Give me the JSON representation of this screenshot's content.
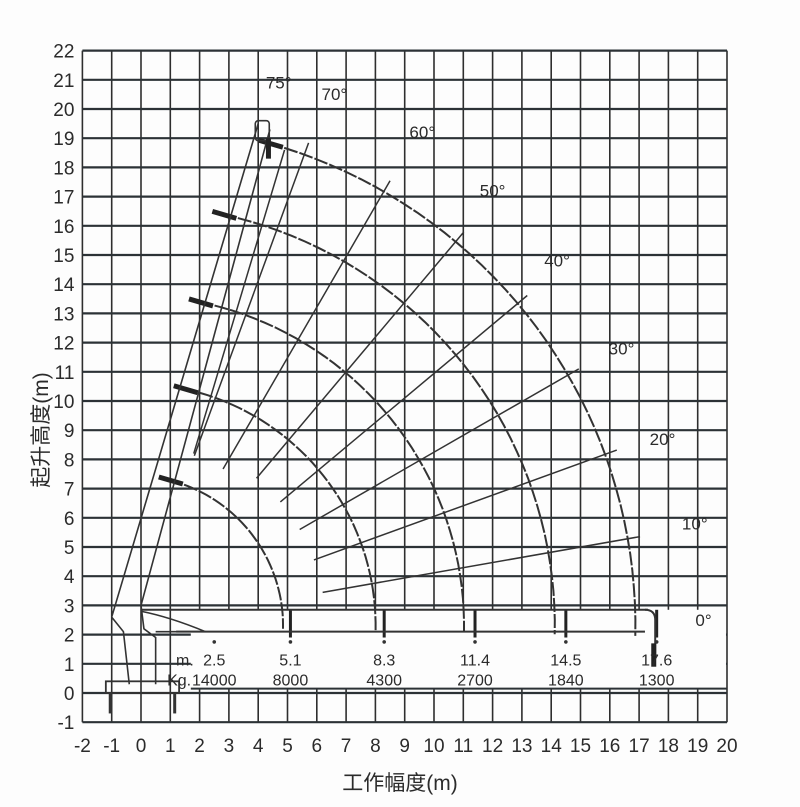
{
  "chart_data": {
    "type": "line",
    "title": "",
    "xlabel": "工作幅度(m)",
    "ylabel": "起升高度(m)",
    "xlim": [
      -2,
      20
    ],
    "ylim": [
      -1,
      22
    ],
    "grid": true,
    "x_ticks": [
      "-2",
      "-1",
      "0",
      "1",
      "2",
      "3",
      "4",
      "5",
      "6",
      "7",
      "8",
      "9",
      "10",
      "11",
      "12",
      "13",
      "14",
      "15",
      "16",
      "17",
      "18",
      "19",
      "20"
    ],
    "y_ticks": [
      "-1",
      "0",
      "1",
      "2",
      "3",
      "4",
      "5",
      "6",
      "7",
      "8",
      "9",
      "10",
      "11",
      "12",
      "13",
      "14",
      "15",
      "16",
      "17",
      "18",
      "19",
      "20",
      "21",
      "22"
    ],
    "boom_angles": [
      {
        "label": "75°",
        "angle": 75
      },
      {
        "label": "70°",
        "angle": 70
      },
      {
        "label": "60°",
        "angle": 60
      },
      {
        "label": "50°",
        "angle": 50
      },
      {
        "label": "40°",
        "angle": 40
      },
      {
        "label": "30°",
        "angle": 30
      },
      {
        "label": "20°",
        "angle": 20
      },
      {
        "label": "10°",
        "angle": 10
      },
      {
        "label": "0°",
        "angle": 0
      }
    ],
    "working_range_arcs": [
      {
        "max_height": 7.5,
        "max_radius": 5.1
      },
      {
        "max_height": 10.6,
        "max_radius": 8.3
      },
      {
        "max_height": 13.5,
        "max_radius": 11.4
      },
      {
        "max_height": 16.5,
        "max_radius": 14.5
      },
      {
        "max_height": 18.6,
        "max_radius": 17.6
      }
    ],
    "load_table": {
      "radius_label": "m.",
      "load_label": "Kg.",
      "radius_m": [
        "2.5",
        "5.1",
        "8.3",
        "11.4",
        "14.5",
        "17.6"
      ],
      "load_kg": [
        "14000",
        "8000",
        "4300",
        "2700",
        "1840",
        "1300"
      ]
    }
  }
}
